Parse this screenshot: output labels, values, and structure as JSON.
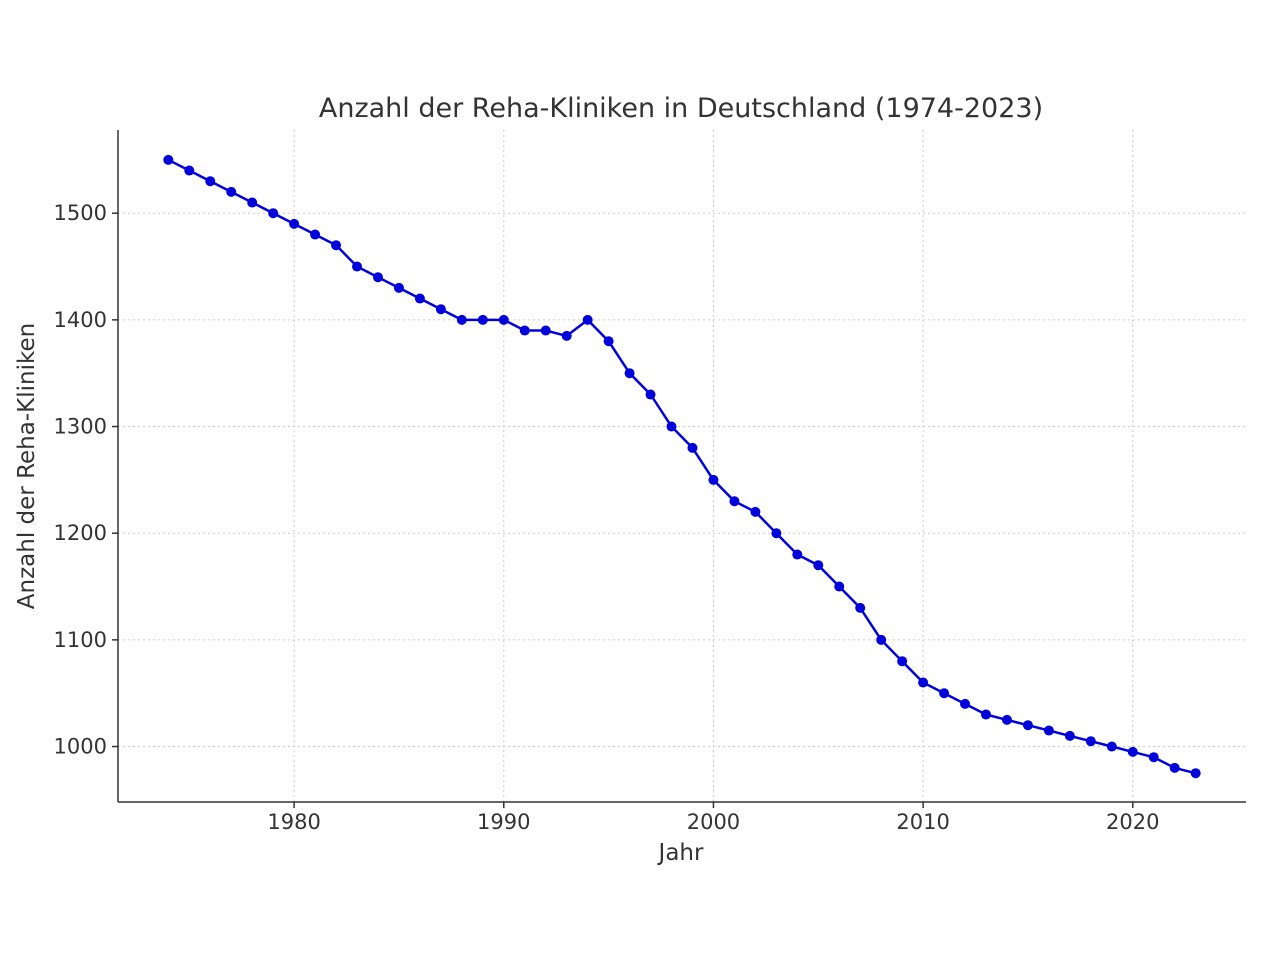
{
  "chart_data": {
    "type": "line",
    "title": "Anzahl der Reha-Kliniken in Deutschland (1974-2023)",
    "xlabel": "Jahr",
    "ylabel": "Anzahl der Reha-Kliniken",
    "xlim": [
      1971.6,
      2025.4
    ],
    "ylim": [
      948,
      1578
    ],
    "xticks": [
      1980,
      1990,
      2000,
      2010,
      2020
    ],
    "yticks": [
      1000,
      1100,
      1200,
      1300,
      1400,
      1500
    ],
    "grid": true,
    "line_color": "#0000dd",
    "x": [
      1974,
      1975,
      1976,
      1977,
      1978,
      1979,
      1980,
      1981,
      1982,
      1983,
      1984,
      1985,
      1986,
      1987,
      1988,
      1989,
      1990,
      1991,
      1992,
      1993,
      1994,
      1995,
      1996,
      1997,
      1998,
      1999,
      2000,
      2001,
      2002,
      2003,
      2004,
      2005,
      2006,
      2007,
      2008,
      2009,
      2010,
      2011,
      2012,
      2013,
      2014,
      2015,
      2016,
      2017,
      2018,
      2019,
      2020,
      2021,
      2022,
      2023
    ],
    "y": [
      1550,
      1540,
      1530,
      1520,
      1510,
      1500,
      1490,
      1480,
      1470,
      1450,
      1440,
      1430,
      1420,
      1410,
      1400,
      1400,
      1400,
      1390,
      1390,
      1385,
      1400,
      1380,
      1350,
      1330,
      1300,
      1280,
      1250,
      1230,
      1220,
      1200,
      1180,
      1170,
      1150,
      1130,
      1100,
      1080,
      1060,
      1050,
      1040,
      1030,
      1025,
      1020,
      1015,
      1010,
      1005,
      1000,
      995,
      990,
      980,
      975
    ]
  }
}
